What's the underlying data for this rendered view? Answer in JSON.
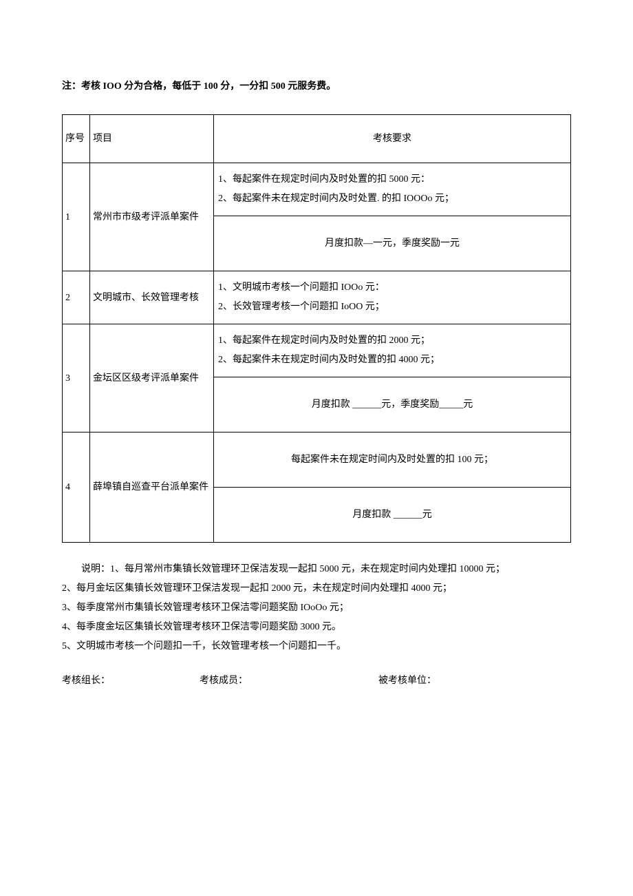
{
  "colors": {
    "text": "#000000",
    "background": "#ffffff",
    "border": "#000000"
  },
  "typography": {
    "font_family": "SimSun",
    "body_fontsize_pt": 10.5,
    "header_bold": true
  },
  "note": "注：考核 IOO 分为合格，每低于 100 分，一分扣 500 元服务费。",
  "table": {
    "headers": {
      "num": "序号",
      "item": "项目",
      "req": "考核要求"
    },
    "rows": [
      {
        "num": "1",
        "item": "常州市市级考评派单案件",
        "req_top": "1、每起案件在规定时间内及时处置的扣 5000 元：\n2、每起案件未在规定时间内及时处置. 的扣 IOOOo 元；",
        "req_bottom": "月度扣款―一元，季度奖励一元"
      },
      {
        "num": "2",
        "item": "文明城市、长效管理考核",
        "req": "1、文明城市考核一个问题扣 IOOo 元：\n2、长效管理考核一个问题扣 IoOO 元；"
      },
      {
        "num": "3",
        "item": "金坛区区级考评派单案件",
        "req_top": "1、每起案件在规定时间内及时处置的扣 2000 元；\n2、每起案件未在规定时间内及时处置的扣 4000 元；",
        "req_bottom": "月度扣款 ______元，季度奖励_____元"
      },
      {
        "num": "4",
        "item": "薛埠镇自巡查平台派单案件",
        "req_top": "每起案件未在规定时间内及时处置的扣 100 元；",
        "req_bottom": "月度扣款 ______元"
      }
    ]
  },
  "explain": {
    "line1": "说明：1、每月常州市集镇长效管理环卫保洁发现一起扣 5000 元，未在规定时间内处理扣 10000 元；",
    "line2": "2、每月金坛区集镇长效管理环卫保洁发现一起扣 2000 元，未在规定时间内处理扣 4000 元；",
    "line3": "3、每季度常州市集镇长效管理考核环卫保洁零问题奖励 IOoOo 元；",
    "line4": "4、每季度金坛区集镇长效管理考核环卫保洁零问题奖励 3000 元。",
    "line5": "5、文明城市考核一个问题扣一千，长效管理考核一个问题扣一千。"
  },
  "signatures": {
    "leader": "考核组长：",
    "members": "考核成员：",
    "unit": "被考核单位："
  }
}
